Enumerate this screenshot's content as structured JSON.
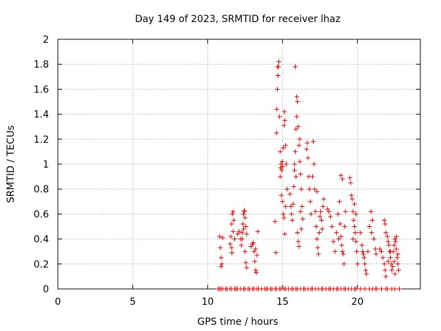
{
  "chart_data": {
    "type": "scatter",
    "title": "Day 149 of 2023, SRMTID for receiver lhaz",
    "xlabel": "GPS time / hours",
    "ylabel": "SRMTID / TECUs",
    "xlim": [
      0,
      24.2
    ],
    "ylim": [
      0,
      2
    ],
    "xticks": [
      0,
      5,
      10,
      15,
      20
    ],
    "xtick_labels": [
      "0",
      "5",
      "10",
      "15",
      "20"
    ],
    "yticks": [
      0,
      0.2,
      0.4,
      0.6,
      0.8,
      1,
      1.2,
      1.4,
      1.6,
      1.8,
      2
    ],
    "ytick_labels": [
      "0",
      "0.2",
      "0.4",
      "0.6",
      "0.8",
      "1",
      "1.2",
      "1.4",
      "1.6",
      "1.8",
      "2"
    ],
    "grid": true,
    "marker": "+",
    "color": "#e00000",
    "series": [
      {
        "name": "SRMTID",
        "points": [
          [
            10.8,
            0.42
          ],
          [
            10.85,
            0.33
          ],
          [
            10.9,
            0.25
          ],
          [
            10.95,
            0.2
          ],
          [
            11.0,
            0.41
          ],
          [
            10.9,
            0.18
          ],
          [
            11.5,
            0.36
          ],
          [
            11.55,
            0.42
          ],
          [
            11.6,
            0.52
          ],
          [
            11.65,
            0.6
          ],
          [
            11.7,
            0.62
          ],
          [
            11.75,
            0.55
          ],
          [
            11.6,
            0.33
          ],
          [
            11.7,
            0.46
          ],
          [
            11.8,
            0.4
          ],
          [
            11.62,
            0.29
          ],
          [
            12.0,
            0.44
          ],
          [
            12.1,
            0.46
          ],
          [
            12.2,
            0.4
          ],
          [
            12.25,
            0.35
          ],
          [
            12.3,
            0.45
          ],
          [
            12.35,
            0.52
          ],
          [
            12.4,
            0.6
          ],
          [
            12.45,
            0.63
          ],
          [
            12.5,
            0.57
          ],
          [
            12.55,
            0.5
          ],
          [
            12.6,
            0.44
          ],
          [
            12.4,
            0.48
          ],
          [
            12.5,
            0.3
          ],
          [
            12.55,
            0.21
          ],
          [
            12.6,
            0.17
          ],
          [
            12.45,
            0.62
          ],
          [
            12.3,
            0.4
          ],
          [
            12.9,
            0.34
          ],
          [
            13.0,
            0.36
          ],
          [
            13.1,
            0.3
          ],
          [
            13.15,
            0.22
          ],
          [
            13.2,
            0.15
          ],
          [
            13.25,
            0.13
          ],
          [
            13.3,
            0.27
          ],
          [
            13.35,
            0.46
          ],
          [
            13.05,
            0.37
          ],
          [
            13.2,
            0.32
          ],
          [
            14.5,
            0.54
          ],
          [
            14.55,
            0.29
          ],
          [
            14.6,
            1.25
          ],
          [
            14.62,
            1.44
          ],
          [
            14.65,
            1.6
          ],
          [
            14.7,
            1.71
          ],
          [
            14.72,
            1.78
          ],
          [
            14.75,
            1.82
          ],
          [
            14.68,
            1.78
          ],
          [
            14.8,
            1.38
          ],
          [
            14.85,
            1.1
          ],
          [
            14.9,
            1.0
          ],
          [
            14.95,
            0.95
          ],
          [
            15.0,
            0.98
          ],
          [
            15.05,
            1.13
          ],
          [
            15.1,
            1.31
          ],
          [
            15.12,
            1.42
          ],
          [
            15.15,
            1.35
          ],
          [
            15.2,
            1.15
          ],
          [
            15.25,
            1.0
          ],
          [
            15.3,
            0.8
          ],
          [
            15.1,
            0.57
          ],
          [
            15.05,
            0.6
          ],
          [
            15.15,
            0.44
          ],
          [
            14.85,
            0.9
          ],
          [
            14.92,
            0.75
          ],
          [
            15.0,
            0.7
          ],
          [
            15.2,
            0.66
          ],
          [
            14.98,
            1.02
          ],
          [
            14.88,
            0.97
          ],
          [
            15.5,
            0.76
          ],
          [
            15.55,
            0.66
          ],
          [
            15.6,
            0.6
          ],
          [
            15.65,
            0.55
          ],
          [
            15.7,
            0.68
          ],
          [
            15.75,
            0.82
          ],
          [
            15.8,
            0.95
          ],
          [
            15.85,
            1.1
          ],
          [
            15.9,
            1.28
          ],
          [
            15.95,
            1.38
          ],
          [
            16.0,
            1.5
          ],
          [
            15.85,
            1.78
          ],
          [
            15.95,
            1.54
          ],
          [
            16.05,
            1.3
          ],
          [
            16.1,
            1.15
          ],
          [
            16.15,
            1.02
          ],
          [
            16.2,
            0.92
          ],
          [
            16.25,
            0.8
          ],
          [
            16.3,
            0.66
          ],
          [
            16.35,
            0.56
          ],
          [
            16.0,
            0.45
          ],
          [
            16.05,
            0.38
          ],
          [
            16.1,
            0.34
          ],
          [
            15.9,
            0.9
          ],
          [
            16.15,
            1.2
          ],
          [
            16.25,
            0.48
          ],
          [
            15.8,
            1.0
          ],
          [
            16.2,
            0.62
          ],
          [
            16.6,
            1.12
          ],
          [
            16.65,
            1.17
          ],
          [
            16.7,
            1.05
          ],
          [
            16.75,
            0.9
          ],
          [
            16.8,
            0.8
          ],
          [
            16.85,
            0.7
          ],
          [
            16.9,
            0.6
          ],
          [
            17.0,
            0.9
          ],
          [
            17.05,
            1.18
          ],
          [
            17.1,
            1.0
          ],
          [
            17.15,
            0.8
          ],
          [
            17.2,
            0.62
          ],
          [
            17.25,
            0.5
          ],
          [
            17.3,
            0.4
          ],
          [
            17.35,
            0.33
          ],
          [
            17.4,
            0.28
          ],
          [
            17.45,
            0.45
          ],
          [
            17.5,
            0.58
          ],
          [
            17.55,
            0.62
          ],
          [
            17.6,
            0.55
          ],
          [
            17.65,
            0.48
          ],
          [
            17.7,
            0.66
          ],
          [
            17.75,
            0.72
          ],
          [
            17.3,
            0.78
          ],
          [
            18.0,
            0.64
          ],
          [
            18.1,
            0.62
          ],
          [
            18.2,
            0.58
          ],
          [
            18.3,
            0.5
          ],
          [
            18.4,
            0.38
          ],
          [
            18.5,
            0.3
          ],
          [
            18.6,
            0.45
          ],
          [
            18.7,
            0.6
          ],
          [
            18.8,
            0.7
          ],
          [
            18.85,
            0.52
          ],
          [
            18.9,
            0.42
          ],
          [
            18.95,
            0.35
          ],
          [
            19.0,
            0.3
          ],
          [
            19.05,
            0.28
          ],
          [
            19.1,
            0.2
          ],
          [
            19.15,
            0.5
          ],
          [
            19.2,
            0.62
          ],
          [
            18.9,
            0.91
          ],
          [
            19.0,
            0.88
          ],
          [
            18.75,
            0.4
          ],
          [
            19.5,
            0.89
          ],
          [
            19.55,
            0.85
          ],
          [
            19.6,
            0.75
          ],
          [
            19.65,
            0.72
          ],
          [
            19.7,
            0.62
          ],
          [
            19.75,
            0.55
          ],
          [
            19.8,
            0.5
          ],
          [
            19.85,
            0.45
          ],
          [
            19.9,
            0.38
          ],
          [
            19.95,
            0.3
          ],
          [
            20.0,
            0.2
          ],
          [
            19.8,
            0.68
          ],
          [
            19.9,
            0.6
          ],
          [
            19.7,
            0.4
          ],
          [
            20.2,
            0.45
          ],
          [
            20.3,
            0.35
          ],
          [
            20.35,
            0.3
          ],
          [
            20.4,
            0.28
          ],
          [
            20.45,
            0.25
          ],
          [
            20.5,
            0.2
          ],
          [
            20.55,
            0.15
          ],
          [
            20.6,
            0.12
          ],
          [
            20.7,
            0.3
          ],
          [
            20.8,
            0.5
          ],
          [
            20.9,
            0.62
          ],
          [
            21.0,
            0.55
          ],
          [
            21.1,
            0.4
          ],
          [
            21.2,
            0.32
          ],
          [
            21.25,
            0.28
          ],
          [
            20.95,
            0.45
          ],
          [
            21.5,
            0.32
          ],
          [
            21.6,
            0.3
          ],
          [
            21.7,
            0.25
          ],
          [
            21.8,
            0.2
          ],
          [
            21.85,
            0.15
          ],
          [
            21.9,
            0.1
          ],
          [
            21.8,
            0.55
          ],
          [
            21.85,
            0.52
          ],
          [
            21.9,
            0.45
          ],
          [
            22.0,
            0.42
          ],
          [
            22.05,
            0.38
          ],
          [
            22.1,
            0.35
          ],
          [
            22.15,
            0.3
          ],
          [
            22.2,
            0.25
          ],
          [
            22.25,
            0.2
          ],
          [
            22.3,
            0.15
          ],
          [
            22.35,
            0.18
          ],
          [
            22.4,
            0.3
          ],
          [
            22.45,
            0.35
          ],
          [
            22.5,
            0.4
          ],
          [
            22.55,
            0.38
          ],
          [
            22.6,
            0.32
          ],
          [
            22.65,
            0.25
          ],
          [
            22.7,
            0.2
          ],
          [
            22.75,
            0.15
          ],
          [
            22.6,
            0.42
          ],
          [
            22.5,
            0.12
          ],
          [
            22.2,
            0.3
          ],
          [
            22.05,
            0.22
          ],
          [
            22.45,
            0.22
          ],
          [
            22.7,
            0.28
          ],
          [
            10.7,
            0
          ],
          [
            10.8,
            0
          ],
          [
            10.9,
            0
          ],
          [
            11.0,
            0
          ],
          [
            11.2,
            0
          ],
          [
            11.3,
            0
          ],
          [
            11.5,
            0
          ],
          [
            11.6,
            0
          ],
          [
            11.8,
            0
          ],
          [
            11.9,
            0
          ],
          [
            12.0,
            0
          ],
          [
            12.2,
            0
          ],
          [
            12.4,
            0
          ],
          [
            12.5,
            0
          ],
          [
            12.7,
            0
          ],
          [
            12.8,
            0
          ],
          [
            13.0,
            0
          ],
          [
            13.1,
            0
          ],
          [
            13.3,
            0
          ],
          [
            13.4,
            0
          ],
          [
            13.6,
            0
          ],
          [
            13.8,
            0
          ],
          [
            13.9,
            0
          ],
          [
            14.0,
            0
          ],
          [
            14.2,
            0
          ],
          [
            14.3,
            0
          ],
          [
            14.5,
            0
          ],
          [
            14.6,
            0
          ],
          [
            14.8,
            0
          ],
          [
            14.9,
            0
          ],
          [
            15.1,
            0
          ],
          [
            15.2,
            0
          ],
          [
            15.4,
            0
          ],
          [
            15.6,
            0
          ],
          [
            15.7,
            0
          ],
          [
            15.9,
            0
          ],
          [
            16.0,
            0
          ],
          [
            16.2,
            0
          ],
          [
            16.4,
            0
          ],
          [
            16.5,
            0
          ],
          [
            16.7,
            0
          ],
          [
            16.9,
            0
          ],
          [
            17.0,
            0
          ],
          [
            17.2,
            0
          ],
          [
            17.4,
            0
          ],
          [
            17.6,
            0
          ],
          [
            17.7,
            0
          ],
          [
            17.9,
            0
          ],
          [
            18.1,
            0
          ],
          [
            18.2,
            0
          ],
          [
            18.4,
            0
          ],
          [
            18.6,
            0
          ],
          [
            18.7,
            0
          ],
          [
            18.9,
            0
          ],
          [
            19.1,
            0
          ],
          [
            19.2,
            0
          ],
          [
            19.4,
            0
          ],
          [
            19.6,
            0
          ],
          [
            19.8,
            0
          ],
          [
            19.9,
            0
          ],
          [
            20.2,
            0
          ],
          [
            20.5,
            0
          ],
          [
            20.8,
            0
          ],
          [
            21.0,
            0
          ],
          [
            21.2,
            0
          ],
          [
            21.3,
            0
          ],
          [
            21.6,
            0
          ],
          [
            21.9,
            0
          ],
          [
            22.0,
            0
          ],
          [
            22.3,
            0
          ],
          [
            22.5,
            0
          ],
          [
            22.8,
            0
          ]
        ]
      }
    ]
  }
}
